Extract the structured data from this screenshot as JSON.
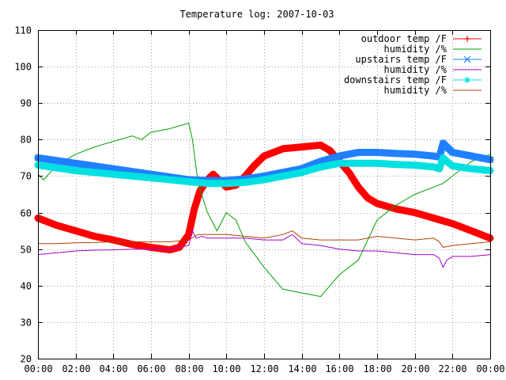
{
  "chart_data": {
    "type": "line",
    "title": "Temperature log: 2007-10-03",
    "xlabel": "",
    "ylabel": "",
    "xlim": [
      0,
      24
    ],
    "ylim": [
      20,
      110
    ],
    "grid": true,
    "legend_position": "top-right",
    "x_ticks": [
      "00:00",
      "02:00",
      "04:00",
      "06:00",
      "08:00",
      "10:00",
      "12:00",
      "14:00",
      "16:00",
      "18:00",
      "20:00",
      "22:00",
      "00:00"
    ],
    "y_ticks": [
      "20",
      "30",
      "40",
      "50",
      "60",
      "70",
      "80",
      "90",
      "100",
      "110"
    ],
    "series": [
      {
        "name": "outdoor temp /F",
        "color": "#ff0000",
        "marker": "plus",
        "x": [
          0,
          1,
          2,
          3,
          4,
          5,
          6,
          7,
          7.5,
          8,
          8.3,
          8.6,
          9,
          9.3,
          9.6,
          10,
          10.5,
          11,
          11.5,
          12,
          13,
          14,
          15,
          15.5,
          16,
          16.5,
          17,
          17.5,
          18,
          19,
          20,
          21,
          22,
          23,
          24
        ],
        "y": [
          58.5,
          56.5,
          55,
          53.5,
          52.5,
          51.3,
          50.5,
          49.8,
          50.5,
          54,
          61,
          66,
          69,
          70.5,
          69,
          67,
          67.5,
          70,
          73,
          75.5,
          77.5,
          78,
          78.5,
          77,
          74,
          71,
          67,
          64,
          62.5,
          61,
          60,
          58.5,
          57,
          55,
          53
        ]
      },
      {
        "name": "humidity /%",
        "color": "#00a000",
        "x": [
          0,
          0.3,
          1,
          2,
          3,
          4,
          5,
          5.5,
          6,
          7,
          8,
          8.2,
          8.5,
          9,
          9.5,
          10,
          10.5,
          11,
          12,
          13,
          14,
          14.5,
          15,
          15.5,
          16,
          17,
          18,
          19,
          20,
          21,
          21.5,
          22,
          23,
          24
        ],
        "y": [
          70.5,
          69,
          73,
          76,
          78,
          79.5,
          81,
          80,
          82,
          83,
          84.5,
          80,
          68,
          60,
          55,
          60,
          58,
          52,
          45,
          39,
          38,
          37.5,
          37,
          40,
          43,
          47,
          58,
          62,
          65,
          67,
          68,
          70,
          74,
          76
        ]
      },
      {
        "name": "upstairs temp /F",
        "color": "#2080ff",
        "marker": "cross",
        "x": [
          0,
          2,
          4,
          6,
          8,
          9,
          10,
          11,
          12,
          13,
          14,
          15,
          16,
          17,
          18,
          19,
          20,
          21,
          21.3,
          21.5,
          21.7,
          22,
          23,
          24
        ],
        "y": [
          75,
          73.5,
          72,
          70.5,
          69,
          68.8,
          68.8,
          69.2,
          70,
          71,
          72,
          74,
          75.5,
          76.5,
          76.5,
          76.2,
          76,
          75.5,
          75.2,
          79,
          78,
          76.5,
          75.5,
          74.5
        ]
      },
      {
        "name": "humidity /%",
        "color": "#a000d0",
        "x": [
          0,
          1,
          2,
          3,
          4,
          5,
          6,
          7,
          8,
          8.2,
          8.4,
          8.7,
          9,
          10,
          11,
          12,
          13,
          13.5,
          14,
          15,
          16,
          17,
          18,
          19,
          20,
          21,
          21.3,
          21.5,
          21.7,
          22,
          23,
          24
        ],
        "y": [
          48.5,
          49,
          49.5,
          49.7,
          49.8,
          50,
          50,
          50,
          51,
          55,
          53,
          53.5,
          53,
          53,
          53,
          52.5,
          52.5,
          54,
          51.5,
          51,
          50,
          49.5,
          49.5,
          49,
          48.5,
          48.5,
          47.5,
          45,
          47,
          48,
          48,
          48.5
        ]
      },
      {
        "name": "downstairs temp /F",
        "color": "#00e0e0",
        "marker": "star",
        "x": [
          0,
          2,
          4,
          6,
          8,
          9,
          10,
          11,
          12,
          13,
          14,
          15,
          16,
          17,
          18,
          19,
          20,
          21,
          21.3,
          21.5,
          21.7,
          22,
          23,
          24
        ],
        "y": [
          73,
          71.5,
          70.5,
          69.5,
          68.5,
          68,
          68,
          68.3,
          69,
          70,
          71,
          72.5,
          73.5,
          73.5,
          73.5,
          73.2,
          73,
          72.5,
          72,
          75,
          74,
          72.8,
          72,
          71.5
        ]
      },
      {
        "name": "humidity /%",
        "color": "#b04000",
        "x": [
          0,
          1,
          2,
          3,
          4,
          5,
          6,
          7,
          8,
          8.5,
          9,
          10,
          11,
          12,
          13,
          13.5,
          14,
          15,
          16,
          17,
          18,
          19,
          20,
          21,
          21.3,
          21.5,
          22,
          23,
          24
        ],
        "y": [
          51.5,
          51.5,
          51.7,
          51.8,
          52,
          52,
          52,
          52,
          52.5,
          54,
          54,
          54,
          53.5,
          53,
          54,
          55,
          53,
          52.5,
          52.5,
          52.5,
          53.5,
          53,
          52.5,
          53,
          52,
          50.5,
          51,
          51.5,
          52
        ]
      }
    ]
  }
}
